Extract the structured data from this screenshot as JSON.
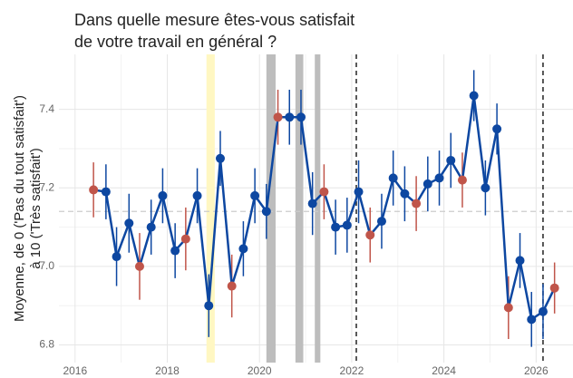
{
  "chart_data": {
    "type": "line",
    "title": [
      "Dans quelle mesure êtes-vous satisfait",
      "de votre travail en général ?"
    ],
    "y_label": [
      "Moyenne, de 0 ('Pas du tout satisfait')",
      "à 10 ('Très satisfait')"
    ],
    "x": [
      2016.4,
      2016.67,
      2016.9,
      2017.17,
      2017.4,
      2017.65,
      2017.9,
      2018.17,
      2018.4,
      2018.65,
      2018.9,
      2019.15,
      2019.4,
      2019.65,
      2019.9,
      2020.15,
      2020.4,
      2020.65,
      2020.9,
      2021.15,
      2021.4,
      2021.65,
      2021.9,
      2022.15,
      2022.4,
      2022.65,
      2022.9,
      2023.15,
      2023.4,
      2023.65,
      2023.9,
      2024.15,
      2024.4,
      2024.65,
      2024.9,
      2025.15,
      2025.4,
      2025.65,
      2025.9,
      2026.15,
      2026.4
    ],
    "values": [
      7.195,
      7.19,
      7.025,
      7.11,
      7.0,
      7.1,
      7.18,
      7.04,
      7.07,
      7.18,
      6.9,
      7.275,
      6.95,
      7.045,
      7.18,
      7.14,
      7.38,
      7.38,
      7.38,
      7.16,
      7.19,
      7.1,
      7.105,
      7.19,
      7.08,
      7.115,
      7.225,
      7.185,
      7.16,
      7.21,
      7.225,
      7.27,
      7.22,
      7.435,
      7.2,
      7.35,
      6.895,
      7.015,
      6.865,
      6.885,
      6.945
    ],
    "errors": [
      0.07,
      0.07,
      0.075,
      0.075,
      0.085,
      0.07,
      0.07,
      0.07,
      0.08,
      0.07,
      0.08,
      0.07,
      0.08,
      0.07,
      0.07,
      0.07,
      0.07,
      0.07,
      0.07,
      0.08,
      0.07,
      0.07,
      0.07,
      0.08,
      0.07,
      0.07,
      0.07,
      0.07,
      0.07,
      0.07,
      0.07,
      0.07,
      0.07,
      0.065,
      0.07,
      0.065,
      0.08,
      0.07,
      0.07,
      0.07,
      0.065
    ],
    "line_color": "#0d47a1",
    "point_colors": [
      "#c0554a",
      "#0d47a1",
      "#0d47a1",
      "#0d47a1",
      "#c0554a",
      "#0d47a1",
      "#0d47a1",
      "#0d47a1",
      "#c0554a",
      "#0d47a1",
      "#0d47a1",
      "#0d47a1",
      "#c0554a",
      "#0d47a1",
      "#0d47a1",
      "#0d47a1",
      "#c0554a",
      "#0d47a1",
      "#0d47a1",
      "#0d47a1",
      "#c0554a",
      "#0d47a1",
      "#0d47a1",
      "#0d47a1",
      "#c0554a",
      "#0d47a1",
      "#0d47a1",
      "#0d47a1",
      "#c0554a",
      "#0d47a1",
      "#0d47a1",
      "#0d47a1",
      "#c0554a",
      "#0d47a1",
      "#0d47a1",
      "#0d47a1",
      "#c0554a",
      "#0d47a1",
      "#0d47a1",
      "#0d47a1",
      "#c0554a"
    ],
    "shaded_regions": [
      {
        "start": 2018.85,
        "end": 2019.03,
        "color": "#fff7c2"
      },
      {
        "start": 2020.15,
        "end": 2020.35,
        "color": "#bdbdbd"
      },
      {
        "start": 2020.78,
        "end": 2020.95,
        "color": "#bdbdbd"
      },
      {
        "start": 2021.2,
        "end": 2021.32,
        "color": "#bdbdbd"
      }
    ],
    "vlines": [
      2022.1,
      2026.15
    ],
    "hline": 7.14,
    "xlim": [
      2015.65,
      2026.8
    ],
    "ylim": [
      6.755,
      7.54
    ],
    "xticks": [
      2016,
      2018,
      2020,
      2022,
      2024,
      2026
    ],
    "yticks": [
      6.8,
      {
        "value": 7.0,
        "label": "7.0"
      },
      7.2,
      7.4
    ],
    "grid": true
  }
}
